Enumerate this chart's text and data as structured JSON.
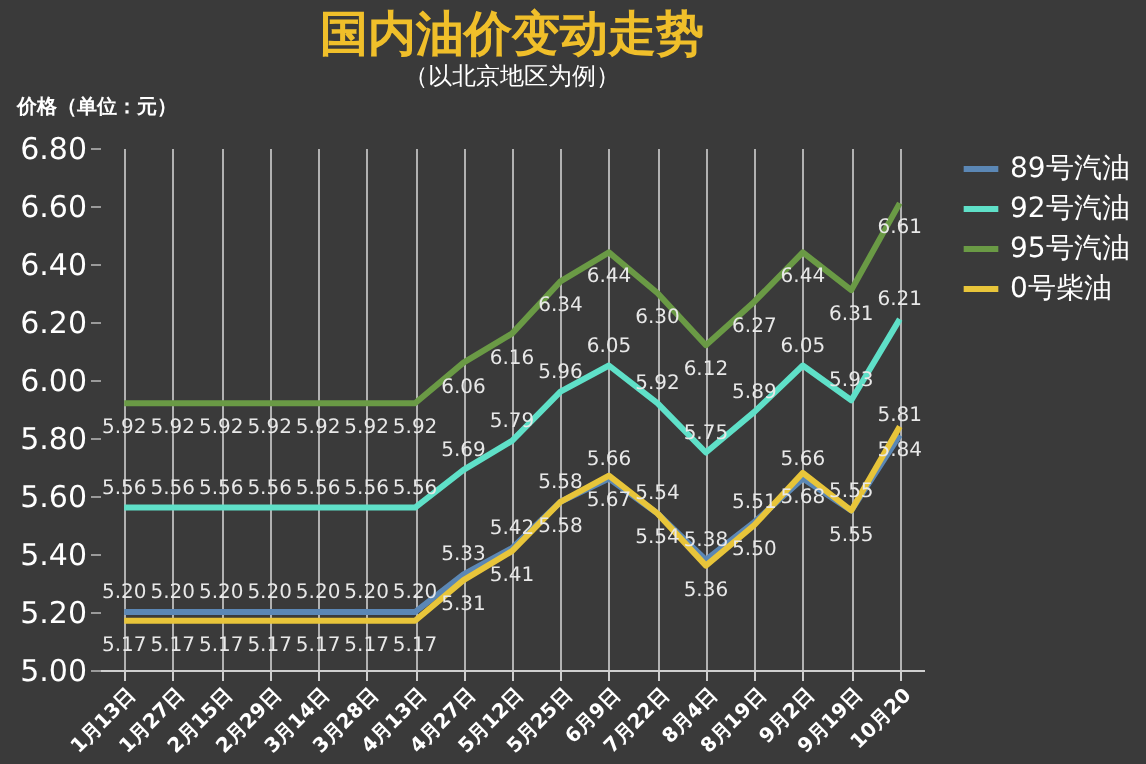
{
  "chart_data": {
    "type": "line",
    "title": "国内油价变动走势",
    "subtitle": "（以北京地区为例）",
    "ylabel": "价格（单位：元）",
    "categories": [
      "1月13日",
      "1月27日",
      "2月15日",
      "2月29日",
      "3月14日",
      "3月28日",
      "4月13日",
      "4月27日",
      "5月12日",
      "5月25日",
      "6月9日",
      "7月22日",
      "8月4日",
      "8月19日",
      "9月2日",
      "9月19日",
      "10月20"
    ],
    "series": [
      {
        "name": "89号汽油",
        "color": "#5b87b5",
        "values": [
          5.2,
          5.2,
          5.2,
          5.2,
          5.2,
          5.2,
          5.2,
          5.33,
          5.42,
          5.58,
          5.66,
          5.54,
          5.38,
          5.51,
          5.66,
          5.55,
          5.81
        ],
        "value_labels": [
          "5.20",
          "5.20",
          "5.20",
          "5.20",
          "5.20",
          "5.20",
          "5.20",
          "5.33",
          "5.42",
          "5.58",
          "5.66",
          "5.54",
          "5.38",
          "5.51",
          "5.66",
          "5.55",
          "5.81"
        ]
      },
      {
        "name": "92号汽油",
        "color": "#5fe0c8",
        "values": [
          5.56,
          5.56,
          5.56,
          5.56,
          5.56,
          5.56,
          5.56,
          5.69,
          5.79,
          5.96,
          6.05,
          5.92,
          5.75,
          5.89,
          6.05,
          5.93,
          6.21
        ],
        "value_labels": [
          "5.56",
          "5.56",
          "5.56",
          "5.56",
          "5.56",
          "5.56",
          "5.56",
          "5.69",
          "5.79",
          "5.96",
          "6.05",
          "5.92",
          "5.75",
          "5.89",
          "6.05",
          "5.93",
          "6.21"
        ]
      },
      {
        "name": "95号汽油",
        "color": "#6a9a45",
        "values": [
          5.92,
          5.92,
          5.92,
          5.92,
          5.92,
          5.92,
          5.92,
          6.06,
          6.16,
          6.34,
          6.44,
          6.3,
          6.12,
          6.27,
          6.44,
          6.31,
          6.61
        ],
        "value_labels": [
          "5.92",
          "5.92",
          "5.92",
          "5.92",
          "5.92",
          "5.92",
          "5.92",
          "6.06",
          "6.16",
          "6.34",
          "6.44",
          "6.30",
          "6.12",
          "6.27",
          "6.44",
          "6.31",
          "6.61"
        ]
      },
      {
        "name": "0号柴油",
        "color": "#e8c53a",
        "values": [
          5.17,
          5.17,
          5.17,
          5.17,
          5.17,
          5.17,
          5.17,
          5.31,
          5.41,
          5.58,
          5.67,
          5.54,
          5.36,
          5.5,
          5.68,
          5.55,
          5.84
        ],
        "value_labels": [
          "5.17",
          "5.17",
          "5.17",
          "5.17",
          "5.17",
          "5.17",
          "5.17",
          "5.31",
          "5.41",
          "5.58",
          "5.67",
          "5.54",
          "5.36",
          "5.50",
          "5.68",
          "5.55",
          "5.84"
        ]
      }
    ],
    "ylim": [
      5.0,
      6.8
    ],
    "yticks": [
      {
        "value": 5.0,
        "label": "5.00"
      },
      {
        "value": 5.2,
        "label": "5.20"
      },
      {
        "value": 5.4,
        "label": "5.40"
      },
      {
        "value": 5.6,
        "label": "5.60"
      },
      {
        "value": 5.8,
        "label": "5.80"
      },
      {
        "value": 6.0,
        "label": "6.00"
      },
      {
        "value": 6.2,
        "label": "6.20"
      },
      {
        "value": 6.4,
        "label": "6.40"
      },
      {
        "value": 6.6,
        "label": "6.60"
      },
      {
        "value": 6.8,
        "label": "6.80"
      }
    ],
    "grid": "x",
    "legend": "right",
    "marker": "none",
    "line_style": "solid"
  }
}
